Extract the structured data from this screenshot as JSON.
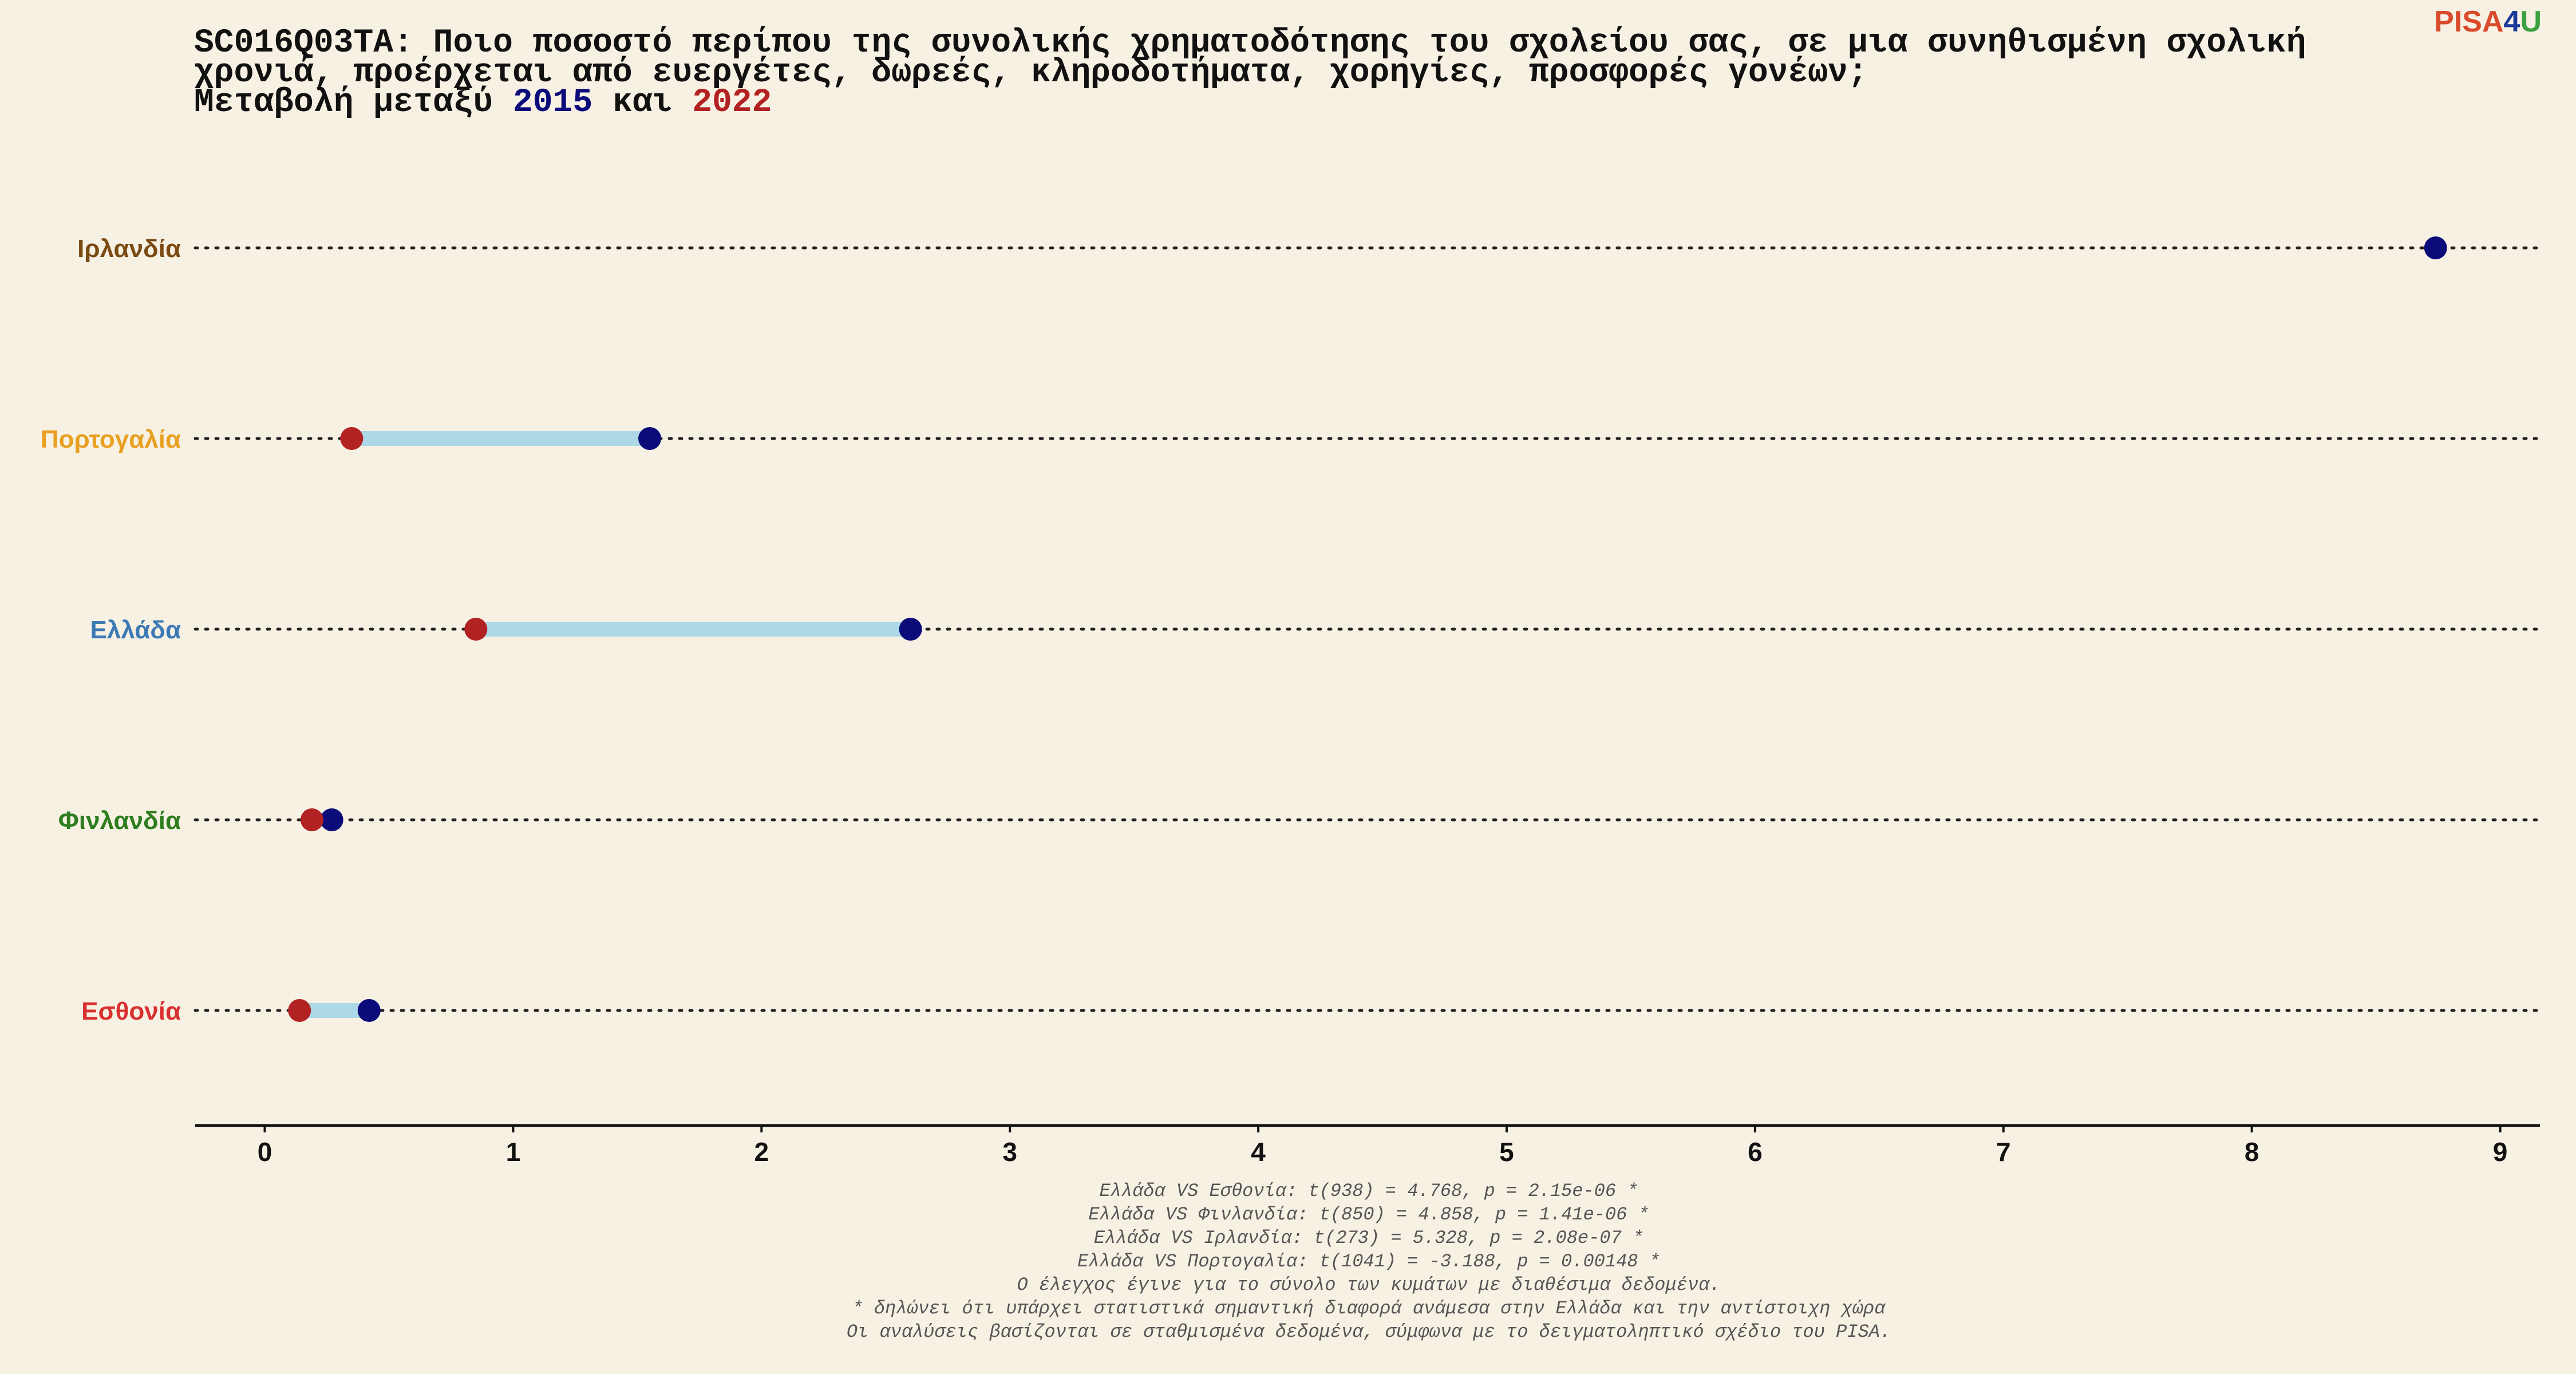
{
  "chart_data": {
    "type": "dumbbell",
    "title": [
      "SC016Q03TA: Ποιο ποσοστό περίπου της συνολικής χρηματοδότησης του σχολείου σας, σε μια συνηθισμένη σχολική",
      "χρονιά, προέρχεται από ευεργέτες, δωρεές, κληροδοτήματα, χορηγίες, προσφορές γονέων;"
    ],
    "subtitle_prefix": "Μεταβολή μεταξύ",
    "subtitle_joiner": "και",
    "categories": [
      "Ιρλανδία",
      "Πορτογαλία",
      "Ελλάδα",
      "Φινλανδία",
      "Εσθονία"
    ],
    "category_colors": [
      "#7b4a12",
      "#e8a020",
      "#3d7ab5",
      "#2e7d1e",
      "#d83030"
    ],
    "series": [
      {
        "name": "2015",
        "color": "#0b0b7a",
        "values": [
          8.74,
          1.55,
          2.6,
          0.27,
          0.42
        ]
      },
      {
        "name": "2022",
        "color": "#b22222",
        "values": [
          null,
          0.35,
          0.85,
          0.19,
          0.14
        ]
      }
    ],
    "connector_color": "#add8e6",
    "xlim": [
      -0.28,
      9.16
    ],
    "xticks": [
      0,
      1,
      2,
      3,
      4,
      5,
      6,
      7,
      8,
      9
    ],
    "footnotes": [
      "Ελλάδα VS Εσθονία: t(938) = 4.768, p = 2.15e-06 *",
      "Ελλάδα VS Φινλανδία: t(850) = 4.858, p = 1.41e-06 *",
      "Ελλάδα VS Ιρλανδία: t(273) = 5.328, p = 2.08e-07 *",
      "Ελλάδα VS Πορτογαλία: t(1041) = -3.188, p = 0.00148 *",
      "Ο έλεγχος έγινε για το σύνολο των κυμάτων με διαθέσιμα δεδομένα.",
      "* δηλώνει ότι υπάρχει στατιστικά σημαντική διαφορά ανάμεσα στην Ελλάδα και την αντίστοιχη χώρα",
      "Οι αναλύσεις βασίζονται σε σταθμισμένα δεδομένα, σύμφωνα με το δειγματοληπτικό σχέδιο του PISA."
    ],
    "logo": [
      "PISA",
      "4",
      "U"
    ]
  }
}
